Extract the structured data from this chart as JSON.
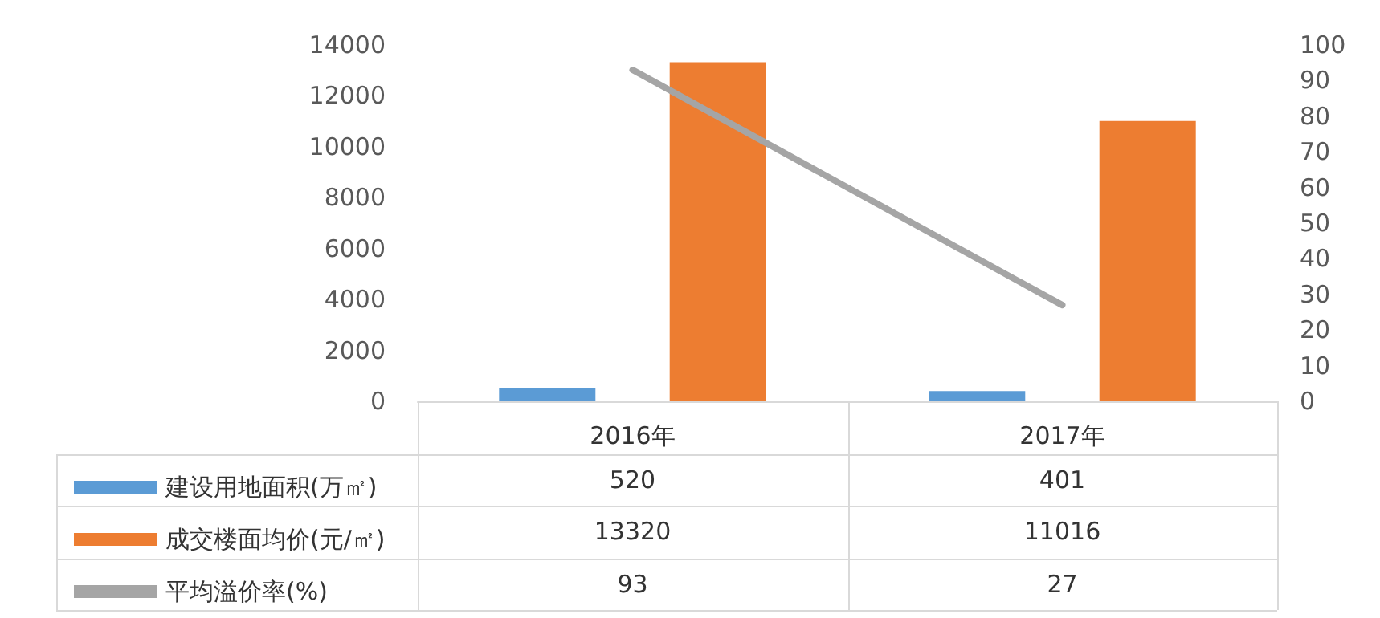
{
  "chart_data": {
    "type": "bar",
    "categories": [
      "2016年",
      "2017年"
    ],
    "series": [
      {
        "name": "建设用地面积(万㎡)",
        "color": "#5b9bd5",
        "values": [
          520,
          401
        ]
      },
      {
        "name": "成交楼面均价(元/㎡)",
        "color": "#ed7d31",
        "values": [
          13320,
          11016
        ]
      },
      {
        "name": "平均溢价率(%)",
        "type": "line",
        "axis": "y2",
        "color": "#a5a5a5",
        "values": [
          93,
          27
        ]
      }
    ],
    "ylim": [
      0,
      14000
    ],
    "yticks": [
      0,
      2000,
      4000,
      6000,
      8000,
      10000,
      12000,
      14000
    ],
    "y2lim": [
      0,
      100
    ],
    "y2ticks": [
      0,
      10,
      20,
      30,
      40,
      50,
      60,
      70,
      80,
      90,
      100
    ],
    "data_labels": true,
    "legend": "bottom",
    "grid": false,
    "marker": "none",
    "line_style": "solid"
  }
}
